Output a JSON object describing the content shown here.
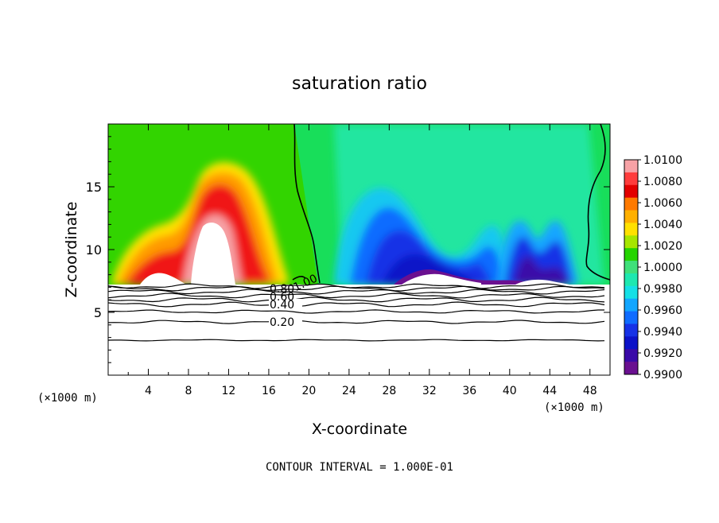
{
  "chart_data": {
    "type": "heatmap",
    "title": "saturation ratio",
    "xlabel": "X-coordinate",
    "ylabel": "Z-coordinate",
    "x_unit_left": "(×1000 m)",
    "x_unit_right": "(×1000 m)",
    "xlim": [
      0,
      50
    ],
    "ylim": [
      0,
      20
    ],
    "x_ticks": [
      4,
      8,
      12,
      16,
      20,
      24,
      28,
      32,
      36,
      40,
      44,
      48
    ],
    "y_ticks": [
      5,
      10,
      15
    ],
    "footer": "CONTOUR INTERVAL = 1.000E-01",
    "colorbar": {
      "ticks": [
        "1.0100",
        "1.0080",
        "1.0060",
        "1.0040",
        "1.0020",
        "1.0000",
        "0.9980",
        "0.9960",
        "0.9940",
        "0.9920",
        "0.9900"
      ],
      "colors": [
        "#f7a2a6",
        "#ff3c3c",
        "#e30000",
        "#ff7a00",
        "#ffb000",
        "#ffe100",
        "#a6e600",
        "#25d400",
        "#3fe07a",
        "#1ee8b0",
        "#15e0e6",
        "#12a6ff",
        "#0f6cff",
        "#1632e6",
        "#0c12c8",
        "#3a0aa8",
        "#6a1090"
      ]
    },
    "contour_labels": [
      "0.20",
      "0.40",
      "0.60",
      "0.80",
      "1.00"
    ],
    "contour_levels": [
      0.1,
      0.2,
      0.3,
      0.4,
      0.5,
      0.6,
      0.7,
      0.8,
      0.9,
      1.0
    ],
    "regions": [
      {
        "name": "supersaturated-plume-west",
        "x_center": 10,
        "z_center": 11,
        "peak": 1.01
      },
      {
        "name": "subsaturated-trough-central",
        "x_center": 31,
        "z_center": 9.5,
        "min": 0.99
      },
      {
        "name": "subsaturated-trough-east",
        "x_center": 41,
        "z_center": 9.5,
        "min": 0.99
      }
    ]
  }
}
